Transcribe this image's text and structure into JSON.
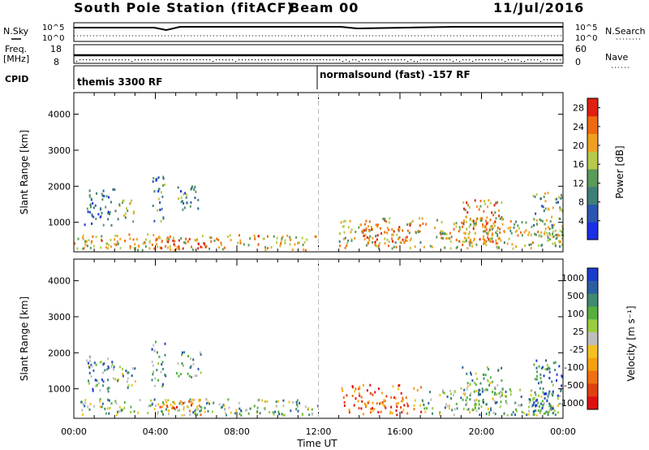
{
  "header": {
    "station": "South Pole Station (fitACF)",
    "beam": "Beam 00",
    "date": "11/Jul/2016"
  },
  "status_panels": {
    "nsky_label": "N.Sky",
    "nsearch_label": "N.Search",
    "freq_label_line1": "Freq.",
    "freq_label_line2": "[MHz]",
    "nave_label": "Nave",
    "cpid_label": "CPID",
    "top_left_ticks": [
      "10^5",
      "10^0"
    ],
    "top_right_ticks": [
      "10^5",
      "10^0"
    ],
    "freq_ticks": [
      "18",
      "8"
    ],
    "nave_ticks": [
      "60",
      "0"
    ],
    "cpid_segments": [
      {
        "label": "themis 3300 RF",
        "start_hour": 0
      },
      {
        "label": "normalsound (fast) -157 RF",
        "start_hour": 12
      }
    ]
  },
  "chart_data": [
    {
      "type": "heatmap",
      "quantity": "Power",
      "ylabel": "Slant Range [km]",
      "xlabel": "Time UT",
      "xlim_hours": [
        0,
        24
      ],
      "ylim": [
        180,
        4600
      ],
      "yticks": [
        "1000",
        "2000",
        "3000",
        "4000"
      ],
      "xticks": [
        "00:00",
        "04:00",
        "08:00",
        "12:00",
        "16:00",
        "20:00",
        "00:00"
      ],
      "colorbar_label": "Power [dB]",
      "colorbar_ticks": [
        "4",
        "8",
        "12",
        "16",
        "20",
        "24",
        "28"
      ],
      "colorbar_range": [
        0,
        30
      ],
      "colors": [
        "#1a2ee6",
        "#2a56b0",
        "#3f7f7a",
        "#5a9a5a",
        "#b8c94a",
        "#f0a020",
        "#ef6a10",
        "#e02010"
      ],
      "echo_regions": [
        {
          "t": [
            0.5,
            2.0
          ],
          "range": [
            900,
            1900
          ],
          "level": 0.25
        },
        {
          "t": [
            2.0,
            3.0
          ],
          "range": [
            1000,
            1600
          ],
          "level": 0.5
        },
        {
          "t": [
            3.8,
            4.5
          ],
          "range": [
            1000,
            2300
          ],
          "level": 0.35
        },
        {
          "t": [
            5.0,
            6.2
          ],
          "range": [
            1300,
            2000
          ],
          "level": 0.3
        },
        {
          "t": [
            0.0,
            12.0
          ],
          "range": [
            200,
            650
          ],
          "level": 0.65
        },
        {
          "t": [
            4.0,
            6.5
          ],
          "range": [
            250,
            550
          ],
          "level": 0.9
        },
        {
          "t": [
            13.0,
            23.8
          ],
          "range": [
            250,
            1100
          ],
          "level": 0.6
        },
        {
          "t": [
            14.0,
            16.5
          ],
          "range": [
            400,
            900
          ],
          "level": 0.85
        },
        {
          "t": [
            19.0,
            21.0
          ],
          "range": [
            400,
            1600
          ],
          "level": 0.7
        },
        {
          "t": [
            22.5,
            24.0
          ],
          "range": [
            300,
            1800
          ],
          "level": 0.45
        }
      ]
    },
    {
      "type": "heatmap",
      "quantity": "Velocity",
      "ylabel": "Slant Range [km]",
      "xlabel": "Time UT",
      "xlim_hours": [
        0,
        24
      ],
      "ylim": [
        180,
        4600
      ],
      "yticks": [
        "1000",
        "2000",
        "3000",
        "4000"
      ],
      "xticks": [
        "00:00",
        "04:00",
        "08:00",
        "12:00",
        "16:00",
        "20:00",
        "00:00"
      ],
      "colorbar_label": "Velocity [m s⁻¹]",
      "colorbar_ticks": [
        "1000",
        "500",
        "100",
        "25",
        "-25",
        "-100",
        "-500",
        "-1000"
      ],
      "colors": [
        "#1a3ccc",
        "#2d5ea0",
        "#3f8a70",
        "#55b040",
        "#9acd40",
        "#bebebe",
        "#f5c020",
        "#f5a010",
        "#f07010",
        "#e04010",
        "#e01010"
      ],
      "echo_regions": [
        {
          "t": [
            0.5,
            2.0
          ],
          "range": [
            900,
            1900
          ],
          "level": 0.3
        },
        {
          "t": [
            2.0,
            3.0
          ],
          "range": [
            1000,
            1600
          ],
          "level": 0.35
        },
        {
          "t": [
            3.8,
            4.5
          ],
          "range": [
            1000,
            2300
          ],
          "level": 0.3
        },
        {
          "t": [
            5.0,
            6.2
          ],
          "range": [
            1300,
            2000
          ],
          "level": 0.3
        },
        {
          "t": [
            0.0,
            12.0
          ],
          "range": [
            250,
            700
          ],
          "level": 0.35
        },
        {
          "t": [
            4.0,
            6.5
          ],
          "range": [
            250,
            700
          ],
          "level": 0.7
        },
        {
          "t": [
            13.0,
            17.0
          ],
          "range": [
            250,
            1100
          ],
          "level": 0.8
        },
        {
          "t": [
            17.0,
            23.8
          ],
          "range": [
            250,
            1000
          ],
          "level": 0.35
        },
        {
          "t": [
            19.0,
            21.0
          ],
          "range": [
            400,
            1600
          ],
          "level": 0.35
        },
        {
          "t": [
            22.5,
            24.0
          ],
          "range": [
            300,
            1800
          ],
          "level": 0.2
        }
      ]
    }
  ],
  "xlabel_shared": "Time UT"
}
